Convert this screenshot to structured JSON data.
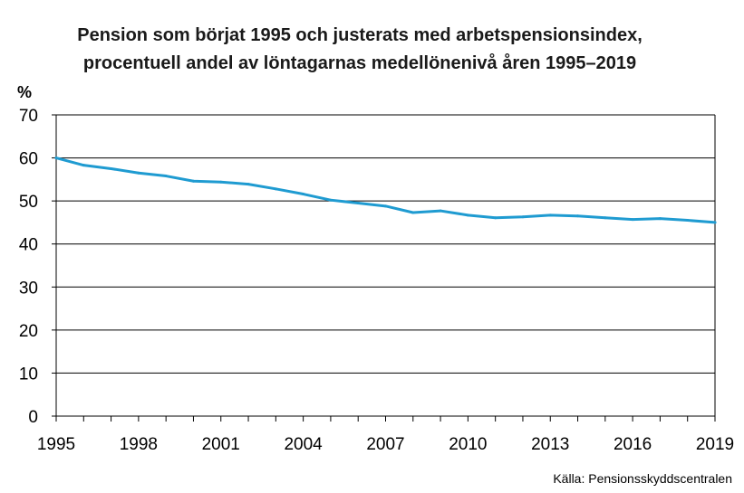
{
  "chart_data": {
    "type": "line",
    "title_lines": [
      "Pension som börjat 1995 och justerats med arbetspensionsindex,",
      "procentuell andel av löntagarnas medellönenivå åren 1995–2019"
    ],
    "ylabel": "%",
    "xlabel": "",
    "ylim": [
      0,
      70
    ],
    "yticks": [
      0,
      10,
      20,
      30,
      40,
      50,
      60,
      70
    ],
    "xlim": [
      1995,
      2019
    ],
    "xtick_labels": [
      "1995",
      "1998",
      "2001",
      "2004",
      "2007",
      "2010",
      "2013",
      "2016",
      "2019"
    ],
    "grid": true,
    "series_color": "#1f9bd1",
    "x": [
      1995,
      1996,
      1997,
      1998,
      1999,
      2000,
      2001,
      2002,
      2003,
      2004,
      2005,
      2006,
      2007,
      2008,
      2009,
      2010,
      2011,
      2012,
      2013,
      2014,
      2015,
      2016,
      2017,
      2018,
      2019
    ],
    "values": [
      60.0,
      58.3,
      57.5,
      56.5,
      55.8,
      54.6,
      54.4,
      53.9,
      52.8,
      51.6,
      50.2,
      49.5,
      48.8,
      47.3,
      47.7,
      46.7,
      46.1,
      46.3,
      46.7,
      46.5,
      46.1,
      45.7,
      45.9,
      45.5,
      45.0
    ]
  },
  "source": "Källa: Pensionsskyddscentralen"
}
